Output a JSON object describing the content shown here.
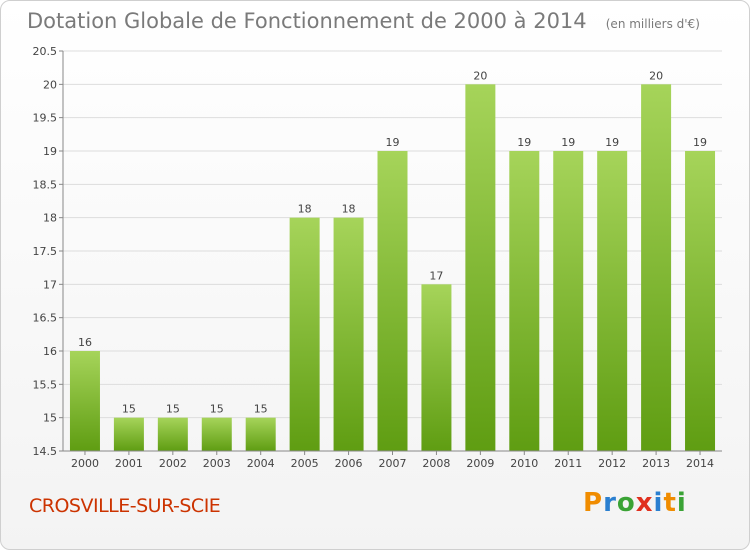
{
  "header": {
    "title": "Dotation Globale de Fonctionnement de 2000 à 2014",
    "unit": "(en milliers d'€)"
  },
  "footer": {
    "commune": "CROSVILLE-SUR-SCIE",
    "logo": {
      "letters": [
        "P",
        "r",
        "o",
        "x",
        "i",
        "t",
        "i"
      ],
      "colors": [
        "#f08c00",
        "#2a7fd0",
        "#3aa335",
        "#e0301e",
        "#2a7fd0",
        "#f08c00",
        "#3aa335"
      ]
    }
  },
  "colors": {
    "bar_light": "#a6d45a",
    "bar_dark": "#5f9d12",
    "axis": "#888888",
    "grid": "#dddddd",
    "text": "#444444",
    "commune": "#cc3300"
  },
  "chart_data": {
    "type": "bar",
    "title": "Dotation Globale de Fonctionnement de 2000 à 2014",
    "subtitle": "(en milliers d'€)",
    "xlabel": "",
    "ylabel": "",
    "categories": [
      "2000",
      "2001",
      "2002",
      "2003",
      "2004",
      "2005",
      "2006",
      "2007",
      "2008",
      "2009",
      "2010",
      "2011",
      "2012",
      "2013",
      "2014"
    ],
    "values": [
      16,
      15,
      15,
      15,
      15,
      18,
      18,
      19,
      17,
      20,
      19,
      19,
      19,
      20,
      19
    ],
    "data_labels": [
      "16",
      "15",
      "15",
      "15",
      "15",
      "18",
      "18",
      "19",
      "17",
      "20",
      "19",
      "19",
      "19",
      "20",
      "19"
    ],
    "ylim": [
      14.5,
      20.5
    ],
    "yticks": [
      14.5,
      15,
      15.5,
      16,
      16.5,
      17,
      17.5,
      18,
      18.5,
      19,
      19.5,
      20,
      20.5
    ],
    "ytick_labels": [
      "14.5",
      "15",
      "15.5",
      "16",
      "16.5",
      "17",
      "17.5",
      "18",
      "18.5",
      "19",
      "19.5",
      "20",
      "20.5"
    ],
    "grid": true,
    "legend": "none"
  }
}
